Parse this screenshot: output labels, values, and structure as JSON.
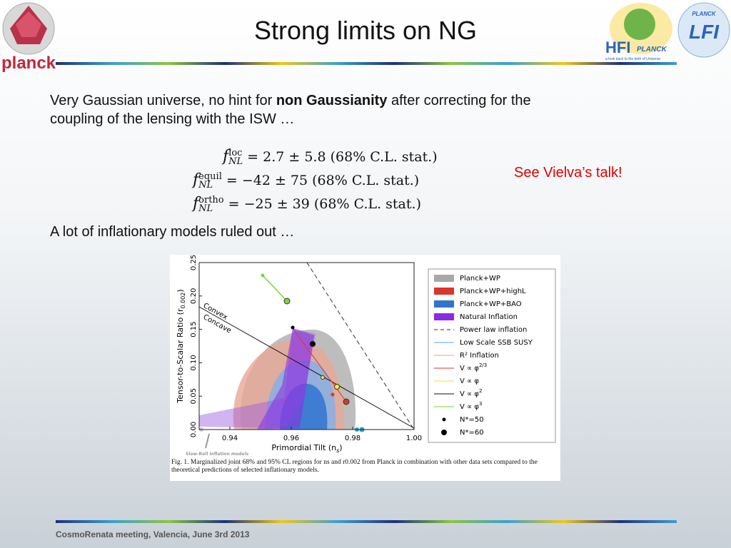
{
  "header": {
    "title": "Strong limits on NG",
    "left_logo": "planck",
    "right_logo": {
      "hfi": "HFI",
      "hfi_brand": "PLANCK",
      "tagline": "a look back to the birth of Universe",
      "lfi_brand": "PLANCK",
      "lfi": "LFI"
    }
  },
  "body": {
    "intro": [
      "Very Gaussian universe, no hint for ",
      "non Gaussianity",
      " after correcting for the coupling of the lensing with the ISW …"
    ],
    "equations": [
      {
        "symbol": "f",
        "sup": "loc",
        "sub": "NL",
        "rhs": "= 2.7 ± 5.8 (68% C.L. stat.)"
      },
      {
        "symbol": "f",
        "sup": "equil",
        "sub": "NL",
        "rhs": "= −42 ± 75 (68% C.L. stat.)"
      },
      {
        "symbol": "f",
        "sup": "ortho",
        "sub": "NL",
        "rhs": "= −25 ± 39 (68% C.L. stat.)"
      }
    ],
    "note": "See Vielva’s talk!",
    "conclusion": "A lot of inflationary models ruled out …"
  },
  "figure": {
    "x_label": {
      "text": "Primordial Tilt (n",
      "sub": "s",
      "end": ")"
    },
    "y_label": {
      "text": "Tensor-to-Scalar Ratio (r",
      "sub": "0.002",
      "end": ")"
    },
    "xlim": [
      0.93,
      1.0
    ],
    "ylim": [
      0,
      0.25
    ],
    "xticks": [
      0.94,
      0.96,
      0.98,
      {
        "value": 1,
        "label": "1.00"
      }
    ],
    "yticks": [
      {
        "value": 0,
        "label": "0.00"
      },
      0.05,
      {
        "value": 0.1,
        "label": "0.10"
      },
      0.15,
      {
        "value": 0.2,
        "label": "0.20"
      },
      0.25
    ],
    "annotations": [
      "Convex",
      "Concave",
      "Slow-Roll Inflation models"
    ],
    "legend": [
      {
        "text": "Planck+WP",
        "color": "#a8a8a8",
        "style": "band"
      },
      {
        "text": "Planck+WP+highL",
        "color": "#d9362c",
        "style": "band"
      },
      {
        "text": "Planck+WP+BAO",
        "color": "#2f74d0",
        "style": "band"
      },
      {
        "text": "Natural Inflation",
        "color": "#8a2be2",
        "style": "band"
      },
      {
        "text": "Power law inflation",
        "color": "#333333",
        "style": "dash"
      },
      {
        "text": "Low Scale SSB SUSY",
        "color": "#4aa8e0",
        "style": "line"
      },
      {
        "text": "R² Inflation",
        "color": "#f0a070",
        "style": "line"
      },
      {
        "text": "V ∝ φ",
        "sup": "2/3",
        "color": "#d9362c",
        "style": "line"
      },
      {
        "text": "V ∝ φ",
        "color": "#e8e040",
        "style": "line"
      },
      {
        "text": "V ∝ φ",
        "sup": "2",
        "color": "#111111",
        "style": "line"
      },
      {
        "text": "V ∝ φ",
        "sup": "3",
        "color": "#80d040",
        "style": "line"
      },
      {
        "text": "N*=50",
        "color": "#000000",
        "style": "dot-small"
      },
      {
        "text": "N*=60",
        "color": "#000000",
        "style": "dot-large"
      }
    ],
    "caption": "Fig. 1. Marginalized joint 68% and 95% CL regions for ns and r0.002 from Planck in combination with other data sets compared to the theoretical predictions of selected inflationary models."
  },
  "footer": "CosmoRenata meeting, Valencia, June 3rd 2013"
}
